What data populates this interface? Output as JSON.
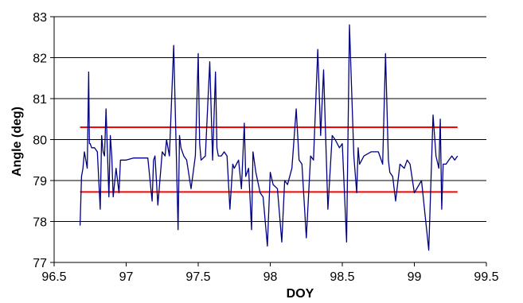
{
  "chart_data": {
    "type": "line",
    "title": "",
    "xlabel": "DOY",
    "ylabel": "Angle (deg)",
    "xlim": [
      96.5,
      99.5
    ],
    "ylim": [
      77,
      83
    ],
    "xticks": [
      96.5,
      97,
      97.5,
      98,
      98.5,
      99,
      99.5
    ],
    "xtick_labels": [
      "96.5",
      "97",
      "97.5",
      "98",
      "98.5",
      "99",
      "99.5"
    ],
    "yticks": [
      77,
      78,
      79,
      80,
      81,
      82,
      83
    ],
    "ytick_labels": [
      "77",
      "78",
      "79",
      "80",
      "81",
      "82",
      "83"
    ],
    "grid": "horizontal",
    "legend": "none",
    "colors": {
      "series": "#000080",
      "limits": "#ff0000",
      "grid": "#000000"
    },
    "reference_lines": [
      {
        "y": 80.3,
        "x_range": [
          96.68,
          99.3
        ]
      },
      {
        "y": 78.72,
        "x_range": [
          96.68,
          99.3
        ]
      }
    ],
    "series": [
      {
        "x": [
          96.68,
          96.69,
          96.7,
          96.71,
          96.72,
          96.73,
          96.74,
          96.745,
          96.75,
          96.76,
          96.78,
          96.8,
          96.82,
          96.83,
          96.84,
          96.85,
          96.86,
          96.88,
          96.89,
          96.9,
          96.91,
          96.93,
          96.95,
          96.96,
          96.97,
          96.98,
          97.0,
          97.05,
          97.1,
          97.15,
          97.18,
          97.19,
          97.2,
          97.22,
          97.25,
          97.27,
          97.28,
          97.3,
          97.33,
          97.35,
          97.36,
          97.37,
          97.38,
          97.4,
          97.42,
          97.45,
          97.48,
          97.5,
          97.51,
          97.52,
          97.55,
          97.58,
          97.6,
          97.62,
          97.63,
          97.64,
          97.66,
          97.68,
          97.7,
          97.72,
          97.74,
          97.75,
          97.78,
          97.8,
          97.82,
          97.83,
          97.85,
          97.87,
          97.88,
          97.9,
          97.93,
          97.95,
          97.98,
          98.0,
          98.02,
          98.05,
          98.08,
          98.1,
          98.12,
          98.15,
          98.18,
          98.2,
          98.22,
          98.25,
          98.28,
          98.3,
          98.33,
          98.35,
          98.37,
          98.4,
          98.43,
          98.45,
          98.48,
          98.5,
          98.53,
          98.55,
          98.58,
          98.6,
          98.61,
          98.62,
          98.65,
          98.7,
          98.75,
          98.78,
          98.8,
          98.82,
          98.83,
          98.85,
          98.87,
          98.9,
          98.93,
          98.95,
          98.97,
          99.0,
          99.05,
          99.1,
          99.13,
          99.15,
          99.17,
          99.18,
          99.19,
          99.2,
          99.22,
          99.24,
          99.26,
          99.28,
          99.3
        ],
        "y": [
          77.9,
          79.1,
          79.3,
          79.7,
          79.5,
          79.3,
          81.65,
          79.9,
          79.9,
          79.8,
          79.8,
          79.7,
          78.3,
          80.1,
          79.7,
          79.6,
          80.75,
          78.6,
          80.1,
          79.6,
          78.6,
          79.3,
          78.7,
          79.5,
          79.5,
          79.5,
          79.5,
          79.55,
          79.55,
          79.55,
          78.5,
          79.5,
          79.6,
          78.4,
          79.7,
          79.6,
          80.0,
          79.6,
          82.3,
          79.4,
          77.8,
          80.1,
          79.8,
          79.6,
          79.5,
          78.8,
          79.6,
          82.1,
          79.9,
          79.5,
          79.6,
          81.9,
          79.5,
          81.65,
          79.8,
          79.6,
          79.6,
          79.7,
          79.6,
          78.3,
          79.4,
          79.3,
          79.5,
          78.8,
          80.4,
          79.1,
          79.3,
          77.8,
          79.7,
          79.2,
          78.7,
          78.6,
          77.4,
          79.2,
          78.9,
          78.8,
          77.5,
          79.0,
          78.9,
          79.3,
          80.75,
          79.5,
          79.4,
          77.6,
          79.6,
          79.5,
          82.2,
          80.1,
          81.7,
          78.3,
          80.1,
          80.0,
          79.8,
          79.9,
          77.5,
          82.8,
          79.6,
          78.7,
          79.8,
          79.4,
          79.6,
          79.7,
          79.7,
          79.4,
          82.1,
          79.5,
          79.2,
          79.1,
          78.5,
          79.4,
          79.3,
          79.5,
          79.4,
          78.7,
          79.0,
          77.3,
          80.6,
          79.6,
          79.3,
          80.5,
          78.3,
          79.4,
          79.4,
          79.5,
          79.6,
          79.5,
          79.6
        ]
      }
    ]
  }
}
